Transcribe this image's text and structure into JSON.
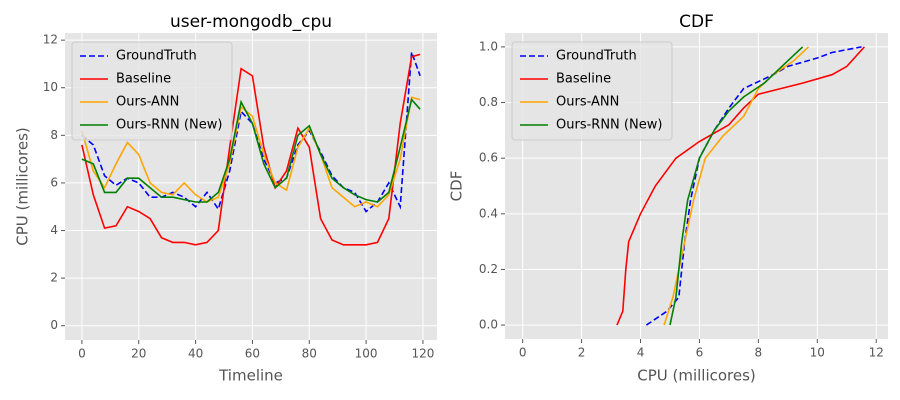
{
  "chart_data": [
    {
      "type": "line",
      "title": "user-mongodb_cpu",
      "xlabel": "Timeline",
      "ylabel": "CPU (millicores)",
      "x": [
        0,
        4,
        8,
        12,
        16,
        20,
        24,
        28,
        32,
        36,
        40,
        44,
        48,
        52,
        56,
        60,
        64,
        68,
        72,
        76,
        80,
        84,
        88,
        92,
        96,
        100,
        104,
        108,
        112,
        116,
        119
      ],
      "series": [
        {
          "name": "GroundTruth",
          "color": "#0000ff",
          "linestyle": "dashed",
          "values": [
            8,
            7.6,
            6.3,
            5.9,
            6.2,
            6.0,
            5.4,
            5.4,
            5.6,
            5.4,
            5.0,
            5.6,
            4.9,
            6.5,
            9.0,
            8.5,
            7.0,
            6.0,
            6.2,
            7.6,
            8.2,
            7.3,
            6.3,
            5.8,
            5.6,
            4.8,
            5.2,
            6.0,
            5.0,
            11.5,
            10.5
          ]
        },
        {
          "name": "Baseline",
          "color": "#ff0000",
          "linestyle": "solid",
          "values": [
            7.6,
            5.5,
            4.1,
            4.2,
            5.0,
            4.8,
            4.5,
            3.7,
            3.5,
            3.5,
            3.4,
            3.5,
            4.0,
            7.5,
            10.8,
            10.5,
            7.5,
            5.8,
            6.5,
            8.3,
            7.5,
            4.5,
            3.6,
            3.4,
            3.4,
            3.4,
            3.5,
            4.5,
            8.5,
            11.3,
            11.4
          ]
        },
        {
          "name": "Ours-ANN",
          "color": "#ffa500",
          "linestyle": "solid",
          "values": [
            8.2,
            6.5,
            5.8,
            6.8,
            7.7,
            7.2,
            6.0,
            5.6,
            5.5,
            6.0,
            5.5,
            5.2,
            5.4,
            6.8,
            9.2,
            8.8,
            7.2,
            6.0,
            5.7,
            7.5,
            8.3,
            7.2,
            5.8,
            5.4,
            5.0,
            5.2,
            5.0,
            5.5,
            7.0,
            9.6,
            9.5
          ]
        },
        {
          "name": "Ours-RNN (New)",
          "color": "#008000",
          "linestyle": "solid",
          "values": [
            7.0,
            6.8,
            5.6,
            5.6,
            6.2,
            6.2,
            5.8,
            5.4,
            5.4,
            5.3,
            5.2,
            5.2,
            5.6,
            7.0,
            9.4,
            8.5,
            6.8,
            5.8,
            6.2,
            8.0,
            8.4,
            7.2,
            6.2,
            5.8,
            5.5,
            5.3,
            5.2,
            5.6,
            7.5,
            9.5,
            9.1
          ]
        }
      ],
      "xlim": [
        -5.95,
        124.95
      ],
      "xticks": [
        0,
        20,
        40,
        60,
        80,
        100,
        120
      ],
      "ylim": [
        -0.6,
        12.3
      ],
      "yticks": [
        0,
        2,
        4,
        6,
        8,
        10,
        12
      ],
      "grid": true,
      "legend": "upper left"
    },
    {
      "type": "line",
      "title": "CDF",
      "xlabel": "CPU (millicores)",
      "ylabel": "CDF",
      "series": [
        {
          "name": "GroundTruth",
          "color": "#0000ff",
          "linestyle": "dashed",
          "x": [
            4.2,
            4.9,
            5.3,
            5.5,
            5.7,
            6.0,
            6.5,
            7.0,
            7.5,
            8.5,
            9.0,
            10.0,
            10.5,
            11.5
          ],
          "values": [
            0,
            0.05,
            0.1,
            0.3,
            0.45,
            0.6,
            0.7,
            0.78,
            0.85,
            0.9,
            0.93,
            0.96,
            0.98,
            1.0
          ]
        },
        {
          "name": "Baseline",
          "color": "#ff0000",
          "linestyle": "solid",
          "x": [
            3.2,
            3.4,
            3.5,
            3.6,
            4.0,
            4.5,
            5.2,
            6.0,
            7.0,
            7.5,
            8.0,
            9.5,
            10.5,
            11.0,
            11.6
          ],
          "values": [
            0,
            0.05,
            0.2,
            0.3,
            0.4,
            0.5,
            0.6,
            0.66,
            0.72,
            0.78,
            0.83,
            0.87,
            0.9,
            0.93,
            1.0
          ]
        },
        {
          "name": "Ours-ANN",
          "color": "#ffa500",
          "linestyle": "solid",
          "x": [
            4.8,
            5.1,
            5.4,
            5.8,
            6.2,
            6.8,
            7.5,
            8.0,
            8.5,
            9.2,
            9.7
          ],
          "values": [
            0,
            0.1,
            0.25,
            0.45,
            0.6,
            0.68,
            0.75,
            0.85,
            0.9,
            0.95,
            1.0
          ]
        },
        {
          "name": "Ours-RNN (New)",
          "color": "#008000",
          "linestyle": "solid",
          "x": [
            5.0,
            5.2,
            5.4,
            5.6,
            6.0,
            6.5,
            7.0,
            7.5,
            8.2,
            9.0,
            9.5
          ],
          "values": [
            0,
            0.1,
            0.3,
            0.45,
            0.6,
            0.7,
            0.77,
            0.82,
            0.87,
            0.95,
            1.0
          ]
        }
      ],
      "xlim": [
        -0.6,
        12.4
      ],
      "xticks": [
        0,
        2,
        4,
        6,
        8,
        10,
        12
      ],
      "ylim": [
        -0.05,
        1.05
      ],
      "yticks": [
        {
          "value": 0,
          "label": "0.0"
        },
        {
          "value": 0.2,
          "label": "0.2"
        },
        {
          "value": 0.4,
          "label": "0.4"
        },
        {
          "value": 0.6,
          "label": "0.6"
        },
        {
          "value": 0.8,
          "label": "0.8"
        },
        {
          "value": 1,
          "label": "1.0"
        }
      ],
      "grid": true,
      "legend": "upper left"
    }
  ]
}
